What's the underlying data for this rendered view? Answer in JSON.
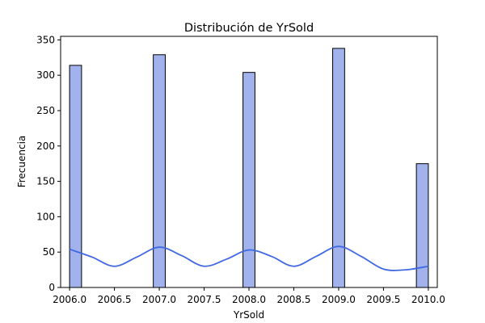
{
  "chart_data": {
    "type": "bar",
    "title": "Distribución de YrSold",
    "xlabel": "YrSold",
    "ylabel": "Frecuencia",
    "xlim": [
      2005.9,
      2010.1
    ],
    "ylim": [
      0,
      355
    ],
    "xticks": [
      "2006.0",
      "2006.5",
      "2007.0",
      "2007.5",
      "2008.0",
      "2008.5",
      "2009.0",
      "2009.5",
      "2010.0"
    ],
    "yticks": [
      "0",
      "50",
      "100",
      "150",
      "200",
      "250",
      "300",
      "350"
    ],
    "bin_width": 0.1333,
    "bars": [
      {
        "x0": 2006.0,
        "x1": 2006.1333,
        "value": 314
      },
      {
        "x0": 2006.9333,
        "x1": 2007.0667,
        "value": 329
      },
      {
        "x0": 2007.9333,
        "x1": 2008.0667,
        "value": 304
      },
      {
        "x0": 2008.9333,
        "x1": 2009.0667,
        "value": 338
      },
      {
        "x0": 2009.8667,
        "x1": 2010.0,
        "value": 175
      }
    ],
    "kde": {
      "x": [
        2006.0,
        2006.25,
        2006.5,
        2006.75,
        2007.0,
        2007.25,
        2007.5,
        2007.75,
        2008.0,
        2008.25,
        2008.5,
        2008.75,
        2009.0,
        2009.25,
        2009.5,
        2009.75,
        2010.0
      ],
      "y": [
        54,
        43,
        30,
        43,
        57,
        45,
        30,
        40,
        53,
        44,
        30,
        44,
        58,
        44,
        26,
        25,
        30
      ]
    },
    "colors": {
      "bar_fill": "#a1b2ec",
      "bar_edge": "#000000",
      "kde_line": "#4169e1"
    },
    "grid": false
  }
}
